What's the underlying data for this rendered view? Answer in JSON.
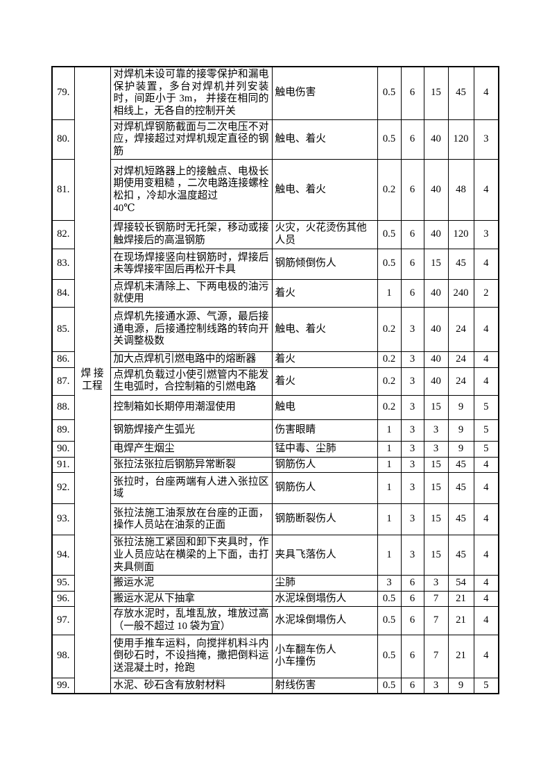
{
  "page": {
    "background_color": "#ffffff",
    "text_color": "#000000"
  },
  "table": {
    "category_label": "焊 接\n工程",
    "rows": [
      {
        "no": "79.",
        "description": "对焊机未设可靠的接零保护和漏电保护装置，多台对焊机并列安装时，间距小于 3m， 并接在相同的相线上，无各自的控制开关",
        "harm": "触电伤害",
        "l": "0.5",
        "e": "6",
        "c": "15",
        "d": "45",
        "level": "4"
      },
      {
        "no": "80.",
        "description": "对焊机焊钢筋截面与二次电压不对应，焊接超过对焊机规定直径的钢筋",
        "harm": "触电、着火",
        "l": "0.5",
        "e": "6",
        "c": "40",
        "d": "120",
        "level": "3"
      },
      {
        "no": "81.",
        "description": "对焊机短路器上的接触点、电极长期使用变粗糙 ，二次电路连接螺栓松扣 ，冷却水温度超过\n40℃",
        "harm": "触电、着火",
        "l": "0.2",
        "e": "6",
        "c": "40",
        "d": "48",
        "level": "4"
      },
      {
        "no": "82.",
        "description": "焊接较长钢筋时无托架，移动或接触焊接后的高温钢筋",
        "harm": "火灾，火花烫伤其他人员",
        "l": "0.5",
        "e": "6",
        "c": "40",
        "d": "120",
        "level": "3"
      },
      {
        "no": "83.",
        "description": "在现场焊接竖向柱钢筋时，焊接后未等焊接牢固后再松开卡具",
        "harm": "钢筋倾倒伤人",
        "l": "0.5",
        "e": "6",
        "c": "15",
        "d": "45",
        "level": "4"
      },
      {
        "no": "84.",
        "description": "点焊机未清除上、下两电极的油污就使用",
        "harm": "着火",
        "l": "1",
        "e": "6",
        "c": "40",
        "d": "240",
        "level": "2"
      },
      {
        "no": "85.",
        "description": "点焊机先接通水源、气源，最后接通电源，后接通控制线路的转向开关调整极数",
        "harm": "触电、着火",
        "l": "0.2",
        "e": "3",
        "c": "40",
        "d": "24",
        "level": "4"
      },
      {
        "no": "86.",
        "description": "加大点焊机引燃电路中的熔断器",
        "harm": "着火",
        "l": "0.2",
        "e": "3",
        "c": "40",
        "d": "24",
        "level": "4"
      },
      {
        "no": "87.",
        "description": "点焊机负载过小使引燃管内不能发生电弧时，合控制箱的引燃电路",
        "harm": "着火",
        "l": "0.2",
        "e": "3",
        "c": "40",
        "d": "24",
        "level": "4"
      },
      {
        "no": "88.",
        "description": "控制箱如长期停用潮湿使用",
        "harm": "触电",
        "l": "0.2",
        "e": "3",
        "c": "15",
        "d": "9",
        "level": "5"
      },
      {
        "no": "89.",
        "description": "钢筋焊接产生弧光",
        "harm": "伤害眼睛",
        "l": "1",
        "e": "3",
        "c": "3",
        "d": "9",
        "level": "5"
      },
      {
        "no": "90.",
        "description": "电焊产生烟尘",
        "harm": "锰中毒、尘肺",
        "l": "1",
        "e": "3",
        "c": "3",
        "d": "9",
        "level": "5"
      },
      {
        "no": "91.",
        "description": "张拉法张拉后钢筋异常断裂",
        "harm": "钢筋伤人",
        "l": "1",
        "e": "3",
        "c": "15",
        "d": "45",
        "level": "4"
      },
      {
        "no": "92.",
        "description": "张拉时，台座两端有人进入张拉区域",
        "harm": "钢筋伤人",
        "l": "1",
        "e": "3",
        "c": "15",
        "d": "45",
        "level": "4"
      },
      {
        "no": "93.",
        "description": "张拉法施工油泵放在台座的正面，操作人员站在油泵的正面",
        "harm": "钢筋断裂伤人",
        "l": "1",
        "e": "3",
        "c": "15",
        "d": "45",
        "level": "4"
      },
      {
        "no": "94.",
        "description": "张拉法施工紧固和卸下夹具时，作业人员应站在横梁的上下面，击打夹具侧面",
        "harm": "夹具飞落伤人",
        "l": "1",
        "e": "3",
        "c": "15",
        "d": "45",
        "level": "4"
      },
      {
        "no": "95.",
        "description": "搬运水泥",
        "harm": "尘肺",
        "l": "3",
        "e": "6",
        "c": "3",
        "d": "54",
        "level": "4"
      },
      {
        "no": "96.",
        "description": "搬运水泥从下抽拿",
        "harm": "水泥垛倒塌伤人",
        "l": "0.5",
        "e": "6",
        "c": "7",
        "d": "21",
        "level": "4"
      },
      {
        "no": "97.",
        "description": "存放水泥时，乱堆乱放，堆放过高（一般不超过 10 袋为宜）",
        "harm": "水泥垛倒塌伤人",
        "l": "0.5",
        "e": "6",
        "c": "7",
        "d": "21",
        "level": "4"
      },
      {
        "no": "98.",
        "description": "使用手推车运料，向搅拌机料斗内倒砂石时，不设挡掩，撒把倒料运送混凝土时，抢跑",
        "harm": "小车翻车伤人\n小车撞伤",
        "l": "0.5",
        "e": "6",
        "c": "7",
        "d": "21",
        "level": "4"
      },
      {
        "no": "99.",
        "description": "水泥、砂石含有放射材料",
        "harm": "射线伤害",
        "l": "0.5",
        "e": "6",
        "c": "3",
        "d": "9",
        "level": "5"
      }
    ]
  }
}
